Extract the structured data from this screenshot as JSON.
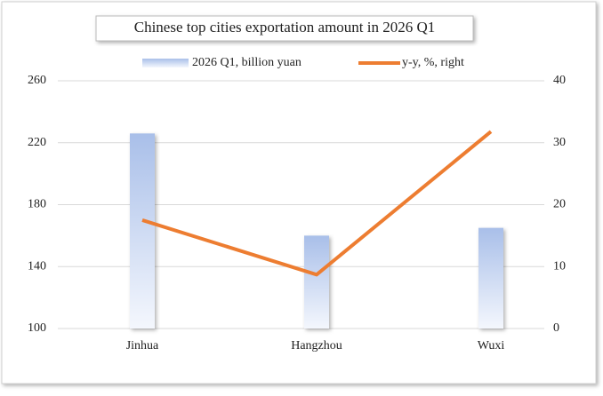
{
  "chart_data": {
    "type": "bar+line",
    "title": "Chinese top cities exportation amount in 2026 Q1",
    "categories": [
      "Jinhua",
      "Hangzhou",
      "Wuxi"
    ],
    "series": [
      {
        "name": "2026 Q1, billion yuan",
        "type": "bar",
        "color": "#a9bfe9",
        "values": [
          226,
          160,
          165
        ]
      },
      {
        "name": "y-y, %, right",
        "type": "line",
        "color": "#ed7d31",
        "axis": "y2",
        "values": [
          17.5,
          8.7,
          31.8
        ]
      }
    ],
    "ylim": [
      100,
      260
    ],
    "yticks": [
      100,
      140,
      180,
      220,
      260
    ],
    "y2lim": [
      0,
      40
    ],
    "y2ticks": [
      0,
      10,
      20,
      30,
      40
    ],
    "grid": true,
    "legend": "top"
  }
}
